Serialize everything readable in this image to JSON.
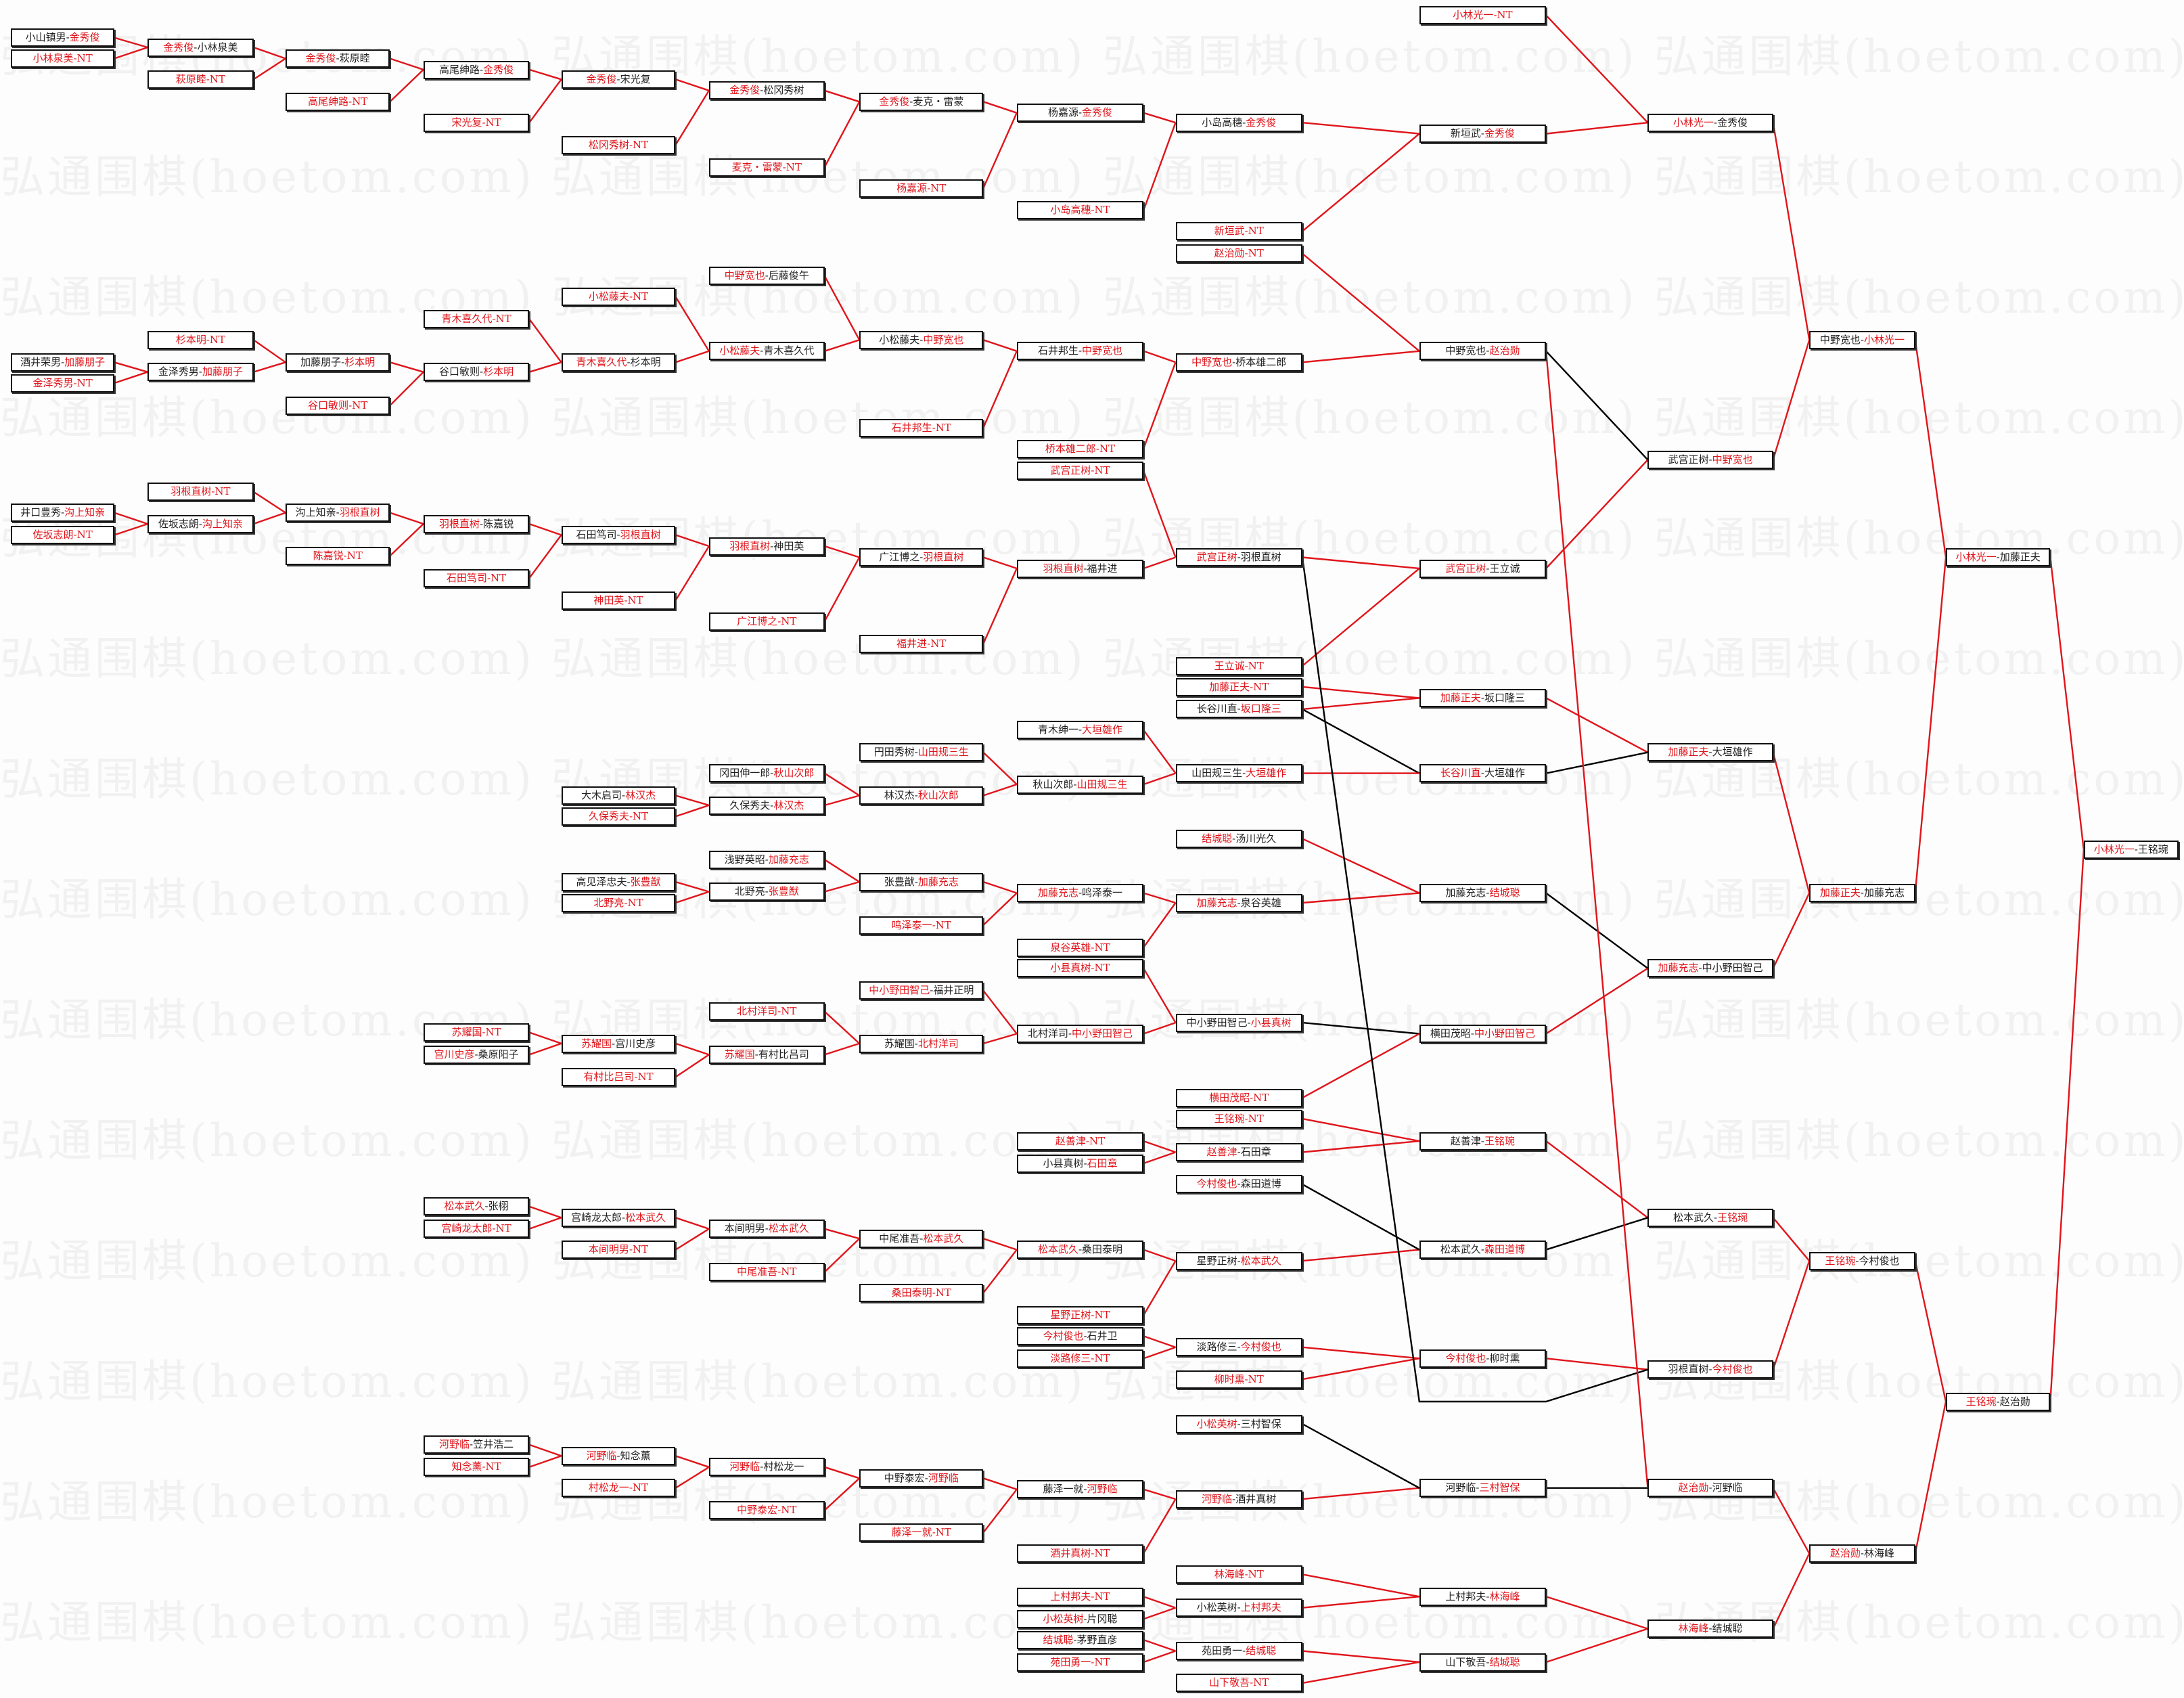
{
  "watermark": "弘通围棋(hoetom.com) 弘通围棋(hoetom.com) 弘通围棋(hoetom.com) 弘通围棋(hoetom.com)",
  "colors": {
    "winner": "#e0151b",
    "loser": "#222222",
    "winner_line": "#e0151b",
    "loser_line": "#000000"
  },
  "boxes": [
    {
      "p1": "小山镇男",
      "p2": "金秀俊",
      "winner": "p2"
    },
    {
      "p1": "小林泉美",
      "p2": "NT",
      "winner": "all"
    },
    {
      "p1": "酒井荣男",
      "p2": "加藤朋子",
      "winner": "p2"
    },
    {
      "p1": "金泽秀男",
      "p2": "NT",
      "winner": "all"
    },
    {
      "p1": "井口豊秀",
      "p2": "沟上知亲",
      "winner": "p2"
    },
    {
      "p1": "佐坂志朗",
      "p2": "NT",
      "winner": "all"
    },
    {
      "p1": "金秀俊",
      "p2": "小林泉美",
      "winner": "p1"
    },
    {
      "p1": "萩原睦",
      "p2": "NT",
      "winner": "all"
    },
    {
      "p1": "杉本明",
      "p2": "NT",
      "winner": "all"
    },
    {
      "p1": "金泽秀男",
      "p2": "加藤朋子",
      "winner": "p2"
    },
    {
      "p1": "羽根直树",
      "p2": "NT",
      "winner": "all"
    },
    {
      "p1": "佐坂志朗",
      "p2": "沟上知亲",
      "winner": "p2"
    },
    {
      "p1": "金秀俊",
      "p2": "萩原睦",
      "winner": "p1"
    },
    {
      "p1": "高尾绅路",
      "p2": "NT",
      "winner": "all"
    },
    {
      "p1": "加藤朋子",
      "p2": "杉本明",
      "winner": "p2"
    },
    {
      "p1": "谷口敏则",
      "p2": "NT",
      "winner": "all"
    },
    {
      "p1": "沟上知亲",
      "p2": "羽根直树",
      "winner": "p2"
    },
    {
      "p1": "陈嘉锐",
      "p2": "NT",
      "winner": "all"
    },
    {
      "p1": "高尾绅路",
      "p2": "金秀俊",
      "winner": "p2"
    },
    {
      "p1": "宋光复",
      "p2": "NT",
      "winner": "all"
    },
    {
      "p1": "青木喜久代",
      "p2": "NT",
      "winner": "all"
    },
    {
      "p1": "谷口敏则",
      "p2": "杉本明",
      "winner": "p2"
    },
    {
      "p1": "羽根直树",
      "p2": "陈嘉锐",
      "winner": "p1"
    },
    {
      "p1": "石田笃司",
      "p2": "NT",
      "winner": "all"
    },
    {
      "p1": "苏耀国",
      "p2": "NT",
      "winner": "all"
    },
    {
      "p1": "宫川史彦",
      "p2": "桑原阳子",
      "winner": "p1"
    },
    {
      "p1": "松本武久",
      "p2": "张栩",
      "winner": "p1"
    },
    {
      "p1": "宫崎龙太郎",
      "p2": "NT",
      "winner": "all"
    },
    {
      "p1": "河野临",
      "p2": "笠井浩二",
      "winner": "p1"
    },
    {
      "p1": "知念薰",
      "p2": "NT",
      "winner": "all"
    },
    {
      "p1": "金秀俊",
      "p2": "宋光复",
      "winner": "p1"
    },
    {
      "p1": "松冈秀树",
      "p2": "NT",
      "winner": "all"
    },
    {
      "p1": "小松藤夫",
      "p2": "NT",
      "winner": "all"
    },
    {
      "p1": "青木喜久代",
      "p2": "杉本明",
      "winner": "p1"
    },
    {
      "p1": "石田笃司",
      "p2": "羽根直树",
      "winner": "p2"
    },
    {
      "p1": "神田英",
      "p2": "NT",
      "winner": "all"
    },
    {
      "p1": "大木启司",
      "p2": "林汉杰",
      "winner": "p2"
    },
    {
      "p1": "久保秀夫",
      "p2": "NT",
      "winner": "all"
    },
    {
      "p1": "高见泽忠夫",
      "p2": "张豊猷",
      "winner": "p2"
    },
    {
      "p1": "北野亮",
      "p2": "NT",
      "winner": "all"
    },
    {
      "p1": "苏耀国",
      "p2": "宫川史彦",
      "winner": "p1"
    },
    {
      "p1": "有村比吕司",
      "p2": "NT",
      "winner": "all"
    },
    {
      "p1": "宫崎龙太郎",
      "p2": "松本武久",
      "winner": "p2"
    },
    {
      "p1": "本间明男",
      "p2": "NT",
      "winner": "all"
    },
    {
      "p1": "河野临",
      "p2": "知念薰",
      "winner": "p1"
    },
    {
      "p1": "村松龙一",
      "p2": "NT",
      "winner": "all"
    },
    {
      "p1": "金秀俊",
      "p2": "松冈秀树",
      "winner": "p1"
    },
    {
      "p1": "麦克・雷蒙",
      "p2": "NT",
      "winner": "all"
    },
    {
      "p1": "中野宽也",
      "p2": "后藤俊午",
      "winner": "p1"
    },
    {
      "p1": "小松藤夫",
      "p2": "青木喜久代",
      "winner": "p1"
    },
    {
      "p1": "羽根直树",
      "p2": "神田英",
      "winner": "p1"
    },
    {
      "p1": "广江博之",
      "p2": "NT",
      "winner": "all"
    },
    {
      "p1": "冈田伸一郎",
      "p2": "秋山次郎",
      "winner": "p2"
    },
    {
      "p1": "久保秀夫",
      "p2": "林汉杰",
      "winner": "p2"
    },
    {
      "p1": "浅野英昭",
      "p2": "加藤充志",
      "winner": "p2"
    },
    {
      "p1": "北野亮",
      "p2": "张豊猷",
      "winner": "p2"
    },
    {
      "p1": "北村洋司",
      "p2": "NT",
      "winner": "all"
    },
    {
      "p1": "苏耀国",
      "p2": "有村比吕司",
      "winner": "p1"
    },
    {
      "p1": "本间明男",
      "p2": "松本武久",
      "winner": "p2"
    },
    {
      "p1": "中尾准吾",
      "p2": "NT",
      "winner": "all"
    },
    {
      "p1": "河野临",
      "p2": "村松龙一",
      "winner": "p1"
    },
    {
      "p1": "中野泰宏",
      "p2": "NT",
      "winner": "all"
    },
    {
      "p1": "金秀俊",
      "p2": "麦克・雷蒙",
      "winner": "p1"
    },
    {
      "p1": "杨嘉源",
      "p2": "NT",
      "winner": "all"
    },
    {
      "p1": "小松藤夫",
      "p2": "中野宽也",
      "winner": "p2"
    },
    {
      "p1": "石井邦生",
      "p2": "NT",
      "winner": "all"
    },
    {
      "p1": "广江博之",
      "p2": "羽根直树",
      "winner": "p2"
    },
    {
      "p1": "福井进",
      "p2": "NT",
      "winner": "all"
    },
    {
      "p1": "円田秀树",
      "p2": "山田规三生",
      "winner": "p2"
    },
    {
      "p1": "林汉杰",
      "p2": "秋山次郎",
      "winner": "p2"
    },
    {
      "p1": "张豊猷",
      "p2": "加藤充志",
      "winner": "p2"
    },
    {
      "p1": "鸣泽泰一",
      "p2": "NT",
      "winner": "all"
    },
    {
      "p1": "中小野田智己",
      "p2": "福井正明",
      "winner": "p1"
    },
    {
      "p1": "苏耀国",
      "p2": "北村洋司",
      "winner": "p2"
    },
    {
      "p1": "中尾准吾",
      "p2": "松本武久",
      "winner": "p2"
    },
    {
      "p1": "桑田泰明",
      "p2": "NT",
      "winner": "all"
    },
    {
      "p1": "中野泰宏",
      "p2": "河野临",
      "winner": "p2"
    },
    {
      "p1": "藤泽一就",
      "p2": "NT",
      "winner": "all"
    },
    {
      "p1": "杨嘉源",
      "p2": "金秀俊",
      "winner": "p2"
    },
    {
      "p1": "小岛高穗",
      "p2": "NT",
      "winner": "all"
    },
    {
      "p1": "石井邦生",
      "p2": "中野宽也",
      "winner": "p2"
    },
    {
      "p1": "桥本雄二郎",
      "p2": "NT",
      "winner": "all"
    },
    {
      "p1": "武宫正树",
      "p2": "NT",
      "winner": "all"
    },
    {
      "p1": "羽根直树",
      "p2": "福井进",
      "winner": "p1"
    },
    {
      "p1": "青木绅一",
      "p2": "大垣雄作",
      "winner": "p2"
    },
    {
      "p1": "秋山次郎",
      "p2": "山田规三生",
      "winner": "p2"
    },
    {
      "p1": "加藤充志",
      "p2": "鸣泽泰一",
      "winner": "p1"
    },
    {
      "p1": "泉谷英雄",
      "p2": "NT",
      "winner": "all"
    },
    {
      "p1": "小县真树",
      "p2": "NT",
      "winner": "all"
    },
    {
      "p1": "北村洋司",
      "p2": "中小野田智己",
      "winner": "p2"
    },
    {
      "p1": "赵善津",
      "p2": "NT",
      "winner": "all"
    },
    {
      "p1": "小县真树",
      "p2": "石田章",
      "winner": "p2"
    },
    {
      "p1": "松本武久",
      "p2": "桑田泰明",
      "winner": "p1"
    },
    {
      "p1": "星野正树",
      "p2": "NT",
      "winner": "all"
    },
    {
      "p1": "今村俊也",
      "p2": "石井卫",
      "winner": "p1"
    },
    {
      "p1": "淡路修三",
      "p2": "NT",
      "winner": "all"
    },
    {
      "p1": "藤泽一就",
      "p2": "河野临",
      "winner": "p2"
    },
    {
      "p1": "酒井真树",
      "p2": "NT",
      "winner": "all"
    },
    {
      "p1": "上村邦夫",
      "p2": "NT",
      "winner": "all"
    },
    {
      "p1": "小松英树",
      "p2": "片冈聪",
      "winner": "p1"
    },
    {
      "p1": "结城聪",
      "p2": "茅野直彦",
      "winner": "p1"
    },
    {
      "p1": "苑田勇一",
      "p2": "NT",
      "winner": "all"
    },
    {
      "p1": "小岛高穗",
      "p2": "金秀俊",
      "winner": "p2"
    },
    {
      "p1": "新垣武",
      "p2": "NT",
      "winner": "all"
    },
    {
      "p1": "赵治勋",
      "p2": "NT",
      "winner": "all"
    },
    {
      "p1": "中野宽也",
      "p2": "桥本雄二郎",
      "winner": "p1"
    },
    {
      "p1": "武宫正树",
      "p2": "羽根直树",
      "winner": "p1"
    },
    {
      "p1": "王立诚",
      "p2": "NT",
      "winner": "all"
    },
    {
      "p1": "加藤正夫",
      "p2": "NT",
      "winner": "all"
    },
    {
      "p1": "长谷川直",
      "p2": "坂口隆三",
      "winner": "p2"
    },
    {
      "p1": "山田规三生",
      "p2": "大垣雄作",
      "winner": "p2"
    },
    {
      "p1": "结城聪",
      "p2": "汤川光久",
      "winner": "p1"
    },
    {
      "p1": "加藤充志",
      "p2": "泉谷英雄",
      "winner": "p1"
    },
    {
      "p1": "中小野田智己",
      "p2": "小县真树",
      "winner": "p2"
    },
    {
      "p1": "横田茂昭",
      "p2": "NT",
      "winner": "all"
    },
    {
      "p1": "王铭琬",
      "p2": "NT",
      "winner": "all"
    },
    {
      "p1": "赵善津",
      "p2": "石田章",
      "winner": "p1"
    },
    {
      "p1": "今村俊也",
      "p2": "森田道博",
      "winner": "p1"
    },
    {
      "p1": "星野正树",
      "p2": "松本武久",
      "winner": "p2"
    },
    {
      "p1": "淡路修三",
      "p2": "今村俊也",
      "winner": "p2"
    },
    {
      "p1": "柳时熏",
      "p2": "NT",
      "winner": "all"
    },
    {
      "p1": "小松英树",
      "p2": "三村智保",
      "winner": "p1"
    },
    {
      "p1": "河野临",
      "p2": "酒井真树",
      "winner": "p1"
    },
    {
      "p1": "林海峰",
      "p2": "NT",
      "winner": "all"
    },
    {
      "p1": "小松英树",
      "p2": "上村邦夫",
      "winner": "p2"
    },
    {
      "p1": "苑田勇一",
      "p2": "结城聪",
      "winner": "p2"
    },
    {
      "p1": "山下敬吾",
      "p2": "NT",
      "winner": "all"
    },
    {
      "p1": "小林光一",
      "p2": "NT",
      "winner": "all"
    },
    {
      "p1": "新垣武",
      "p2": "金秀俊",
      "winner": "p2"
    },
    {
      "p1": "中野宽也",
      "p2": "赵治勋",
      "winner": "p2"
    },
    {
      "p1": "武宫正树",
      "p2": "王立诚",
      "winner": "p1"
    },
    {
      "p1": "加藤正夫",
      "p2": "坂口隆三",
      "winner": "p1"
    },
    {
      "p1": "长谷川直",
      "p2": "大垣雄作",
      "winner": "p1"
    },
    {
      "p1": "加藤充志",
      "p2": "结城聪",
      "winner": "p2"
    },
    {
      "p1": "横田茂昭",
      "p2": "中小野田智己",
      "winner": "p2"
    },
    {
      "p1": "赵善津",
      "p2": "王铭琬",
      "winner": "p2"
    },
    {
      "p1": "松本武久",
      "p2": "森田道博",
      "winner": "p2"
    },
    {
      "p1": "今村俊也",
      "p2": "柳时熏",
      "winner": "p1"
    },
    {
      "p1": "河野临",
      "p2": "三村智保",
      "winner": "p2"
    },
    {
      "p1": "上村邦夫",
      "p2": "林海峰",
      "winner": "p2"
    },
    {
      "p1": "山下敬吾",
      "p2": "结城聪",
      "winner": "p2"
    },
    {
      "p1": "小林光一",
      "p2": "金秀俊",
      "winner": "p1"
    },
    {
      "p1": "武宫正树",
      "p2": "中野宽也",
      "winner": "p2"
    },
    {
      "p1": "加藤正夫",
      "p2": "大垣雄作",
      "winner": "p1"
    },
    {
      "p1": "加藤充志",
      "p2": "中小野田智己",
      "winner": "p1"
    },
    {
      "p1": "松本武久",
      "p2": "王铭琬",
      "winner": "p2"
    },
    {
      "p1": "羽根直树",
      "p2": "今村俊也",
      "winner": "p2"
    },
    {
      "p1": "赵治勋",
      "p2": "河野临",
      "winner": "p1"
    },
    {
      "p1": "林海峰",
      "p2": "结城聪",
      "winner": "p1"
    },
    {
      "p1": "中野宽也",
      "p2": "小林光一",
      "winner": "p2"
    },
    {
      "p1": "加藤正夫",
      "p2": "加藤充志",
      "winner": "p1"
    },
    {
      "p1": "王铭琬",
      "p2": "今村俊也",
      "winner": "p1"
    },
    {
      "p1": "赵治勋",
      "p2": "林海峰",
      "winner": "p1"
    },
    {
      "p1": "小林光一",
      "p2": "加藤正夫",
      "winner": "p1"
    },
    {
      "p1": "王铭琬",
      "p2": "赵治勋",
      "winner": "p1"
    },
    {
      "p1": "小林光一",
      "p2": "王铭琬",
      "winner": "p1"
    }
  ]
}
